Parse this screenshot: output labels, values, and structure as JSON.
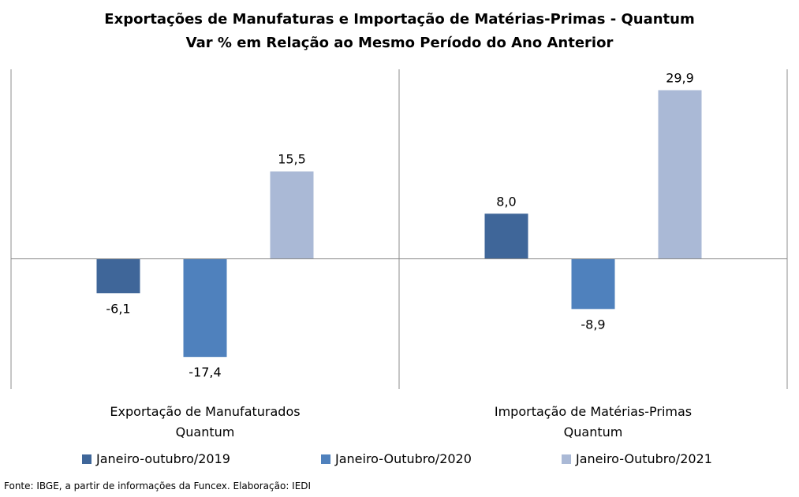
{
  "chart_data": {
    "type": "bar",
    "title": "Exportações de Manufaturas e Importação de Matérias-Primas - Quantum",
    "subtitle": "Var % em Relação ao Mesmo Período do Ano Anterior",
    "categories": [
      [
        "Exportação de Manufaturados",
        "Quantum"
      ],
      [
        "Importação de Matérias-Primas",
        "Quantum"
      ]
    ],
    "series": [
      {
        "name": "Janeiro-outubro/2019",
        "color": "#3f6699",
        "values": [
          -6.1,
          8.0
        ],
        "labels": [
          "-6,1",
          "8,0"
        ]
      },
      {
        "name": "Janeiro-Outubro/2020",
        "color": "#4f81bd",
        "values": [
          -17.4,
          -8.9
        ],
        "labels": [
          "-17,4",
          "-8,9"
        ]
      },
      {
        "name": "Janeiro-Outubro/2021",
        "color": "#aab9d6",
        "values": [
          15.5,
          29.9
        ],
        "labels": [
          "15,5",
          "29,9"
        ]
      }
    ],
    "ylim": [
      -23.1,
      33.6
    ],
    "grid": false,
    "legend_position": "bottom"
  },
  "source": "Fonte: IBGE, a partir de informações da Funcex. Elaboração: IEDI"
}
